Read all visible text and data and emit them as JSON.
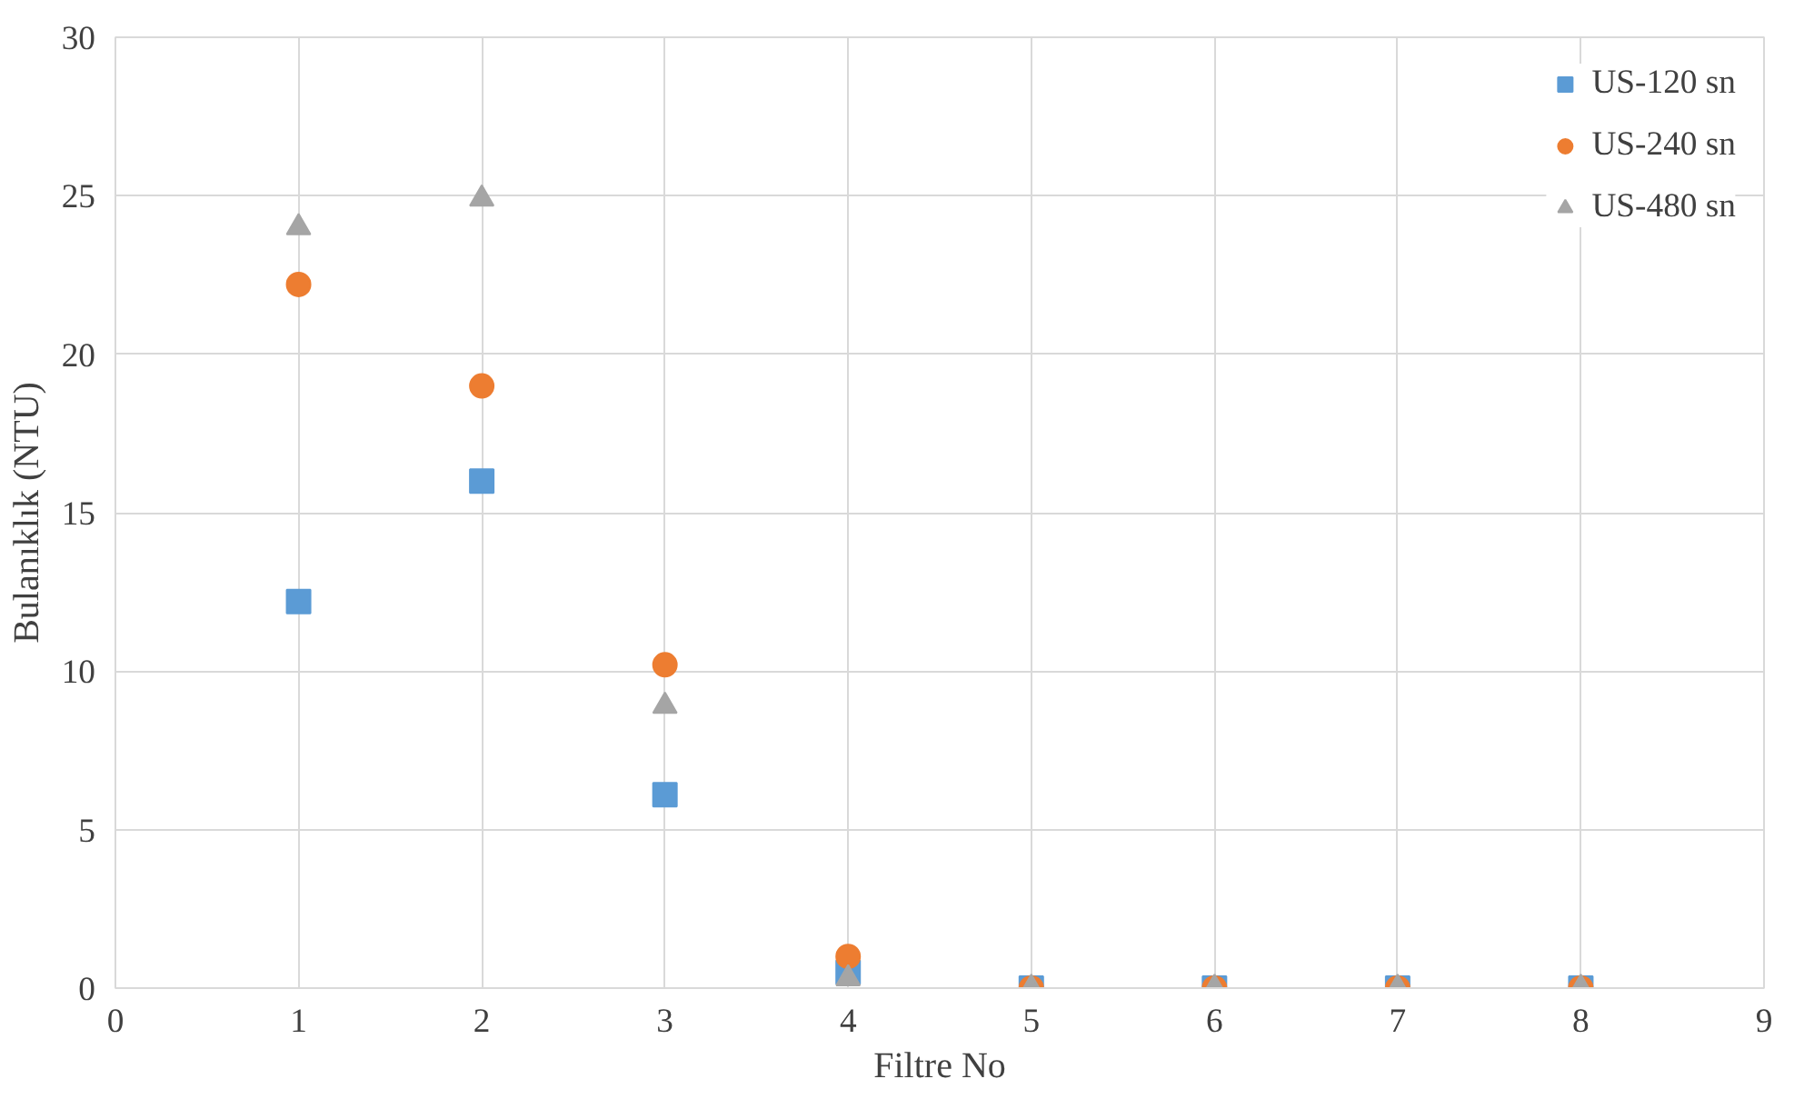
{
  "chart_data": {
    "type": "scatter",
    "xlabel": "Filtre No",
    "ylabel": "Bulanıklık (NTU)",
    "x": [
      1,
      2,
      3,
      4,
      5,
      6,
      7,
      8
    ],
    "series": [
      {
        "name": "US-120 sn",
        "color": "#5b9bd5",
        "marker": "square",
        "values": [
          12.2,
          16.0,
          6.1,
          0.5,
          0,
          0,
          0,
          0
        ]
      },
      {
        "name": "US-240 sn",
        "color": "#ed7d31",
        "marker": "circle",
        "values": [
          22.2,
          19.0,
          10.2,
          1.0,
          0,
          0,
          0,
          0
        ]
      },
      {
        "name": "US-480 sn",
        "color": "#a5a5a5",
        "marker": "triangle",
        "values": [
          24.0,
          24.9,
          8.9,
          0.3,
          0,
          0,
          0,
          0
        ]
      }
    ],
    "xlim": [
      0,
      9
    ],
    "xticks": [
      0,
      1,
      2,
      3,
      4,
      5,
      6,
      7,
      8,
      9
    ],
    "ylim": [
      0,
      30
    ],
    "yticks": [
      0,
      5,
      10,
      15,
      20,
      25,
      30
    ],
    "grid": true,
    "legend": "top right"
  }
}
